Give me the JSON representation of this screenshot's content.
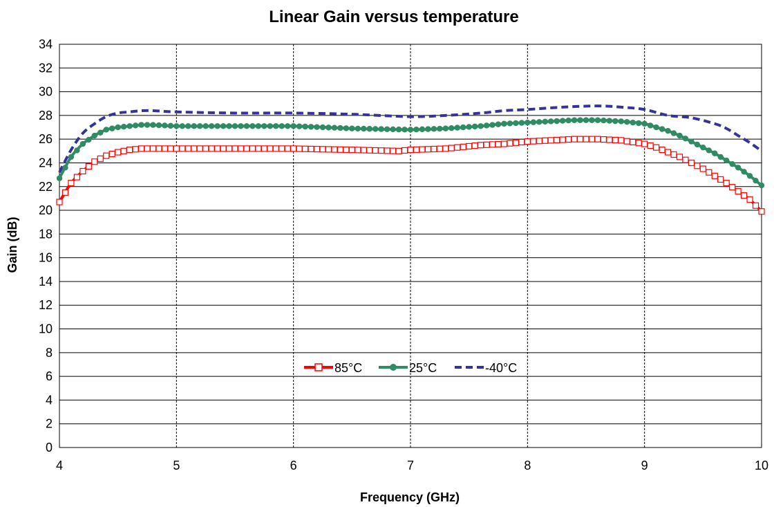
{
  "chart_data": {
    "type": "line",
    "title": "Linear Gain versus temperature",
    "xlabel": "Frequency (GHz)",
    "ylabel": "Gain (dB)",
    "xlim": [
      4,
      10
    ],
    "ylim": [
      0,
      34
    ],
    "xticks": [
      4,
      5,
      6,
      7,
      8,
      9,
      10
    ],
    "yticks": [
      0,
      2,
      4,
      6,
      8,
      10,
      12,
      14,
      16,
      18,
      20,
      22,
      24,
      26,
      28,
      30,
      32,
      34
    ],
    "grid": {
      "horizontal": "solid",
      "vertical": "dashed"
    },
    "legend_position": "center-bottom inside plot",
    "series": [
      {
        "name": "85°C",
        "color": "#ff0000",
        "marker": "open-square",
        "x": [
          4.0,
          4.1,
          4.2,
          4.3,
          4.4,
          4.5,
          4.6,
          4.7,
          4.8,
          5.0,
          5.5,
          6.0,
          6.5,
          6.9,
          7.0,
          7.3,
          7.6,
          7.8,
          8.0,
          8.2,
          8.4,
          8.6,
          8.8,
          9.0,
          9.1,
          9.2,
          9.3,
          9.4,
          9.5,
          9.6,
          9.7,
          9.8,
          9.9,
          10.0
        ],
        "y": [
          20.7,
          22.3,
          23.3,
          24.1,
          24.6,
          24.9,
          25.1,
          25.2,
          25.2,
          25.2,
          25.2,
          25.2,
          25.1,
          25.0,
          25.1,
          25.2,
          25.5,
          25.6,
          25.8,
          25.9,
          26.0,
          26.0,
          25.9,
          25.6,
          25.3,
          24.9,
          24.5,
          24.0,
          23.5,
          22.9,
          22.3,
          21.6,
          20.9,
          19.9
        ]
      },
      {
        "name": "25°C",
        "color": "#2e8b62",
        "marker": "filled-circle",
        "x": [
          4.0,
          4.1,
          4.2,
          4.3,
          4.4,
          4.5,
          4.6,
          4.7,
          4.8,
          5.0,
          5.5,
          6.0,
          6.5,
          7.0,
          7.3,
          7.6,
          7.8,
          8.0,
          8.2,
          8.4,
          8.6,
          8.8,
          9.0,
          9.1,
          9.2,
          9.3,
          9.4,
          9.5,
          9.6,
          9.7,
          9.8,
          9.9,
          10.0
        ],
        "y": [
          22.7,
          24.5,
          25.6,
          26.3,
          26.8,
          27.0,
          27.1,
          27.2,
          27.2,
          27.1,
          27.1,
          27.1,
          26.9,
          26.8,
          26.9,
          27.1,
          27.3,
          27.4,
          27.5,
          27.6,
          27.6,
          27.5,
          27.3,
          27.0,
          26.7,
          26.3,
          25.8,
          25.3,
          24.8,
          24.2,
          23.6,
          22.9,
          22.1
        ]
      },
      {
        "name": "-40°C",
        "color": "#333399",
        "marker": "none",
        "x": [
          4.0,
          4.1,
          4.2,
          4.3,
          4.4,
          4.5,
          4.6,
          4.7,
          4.8,
          5.0,
          5.5,
          6.0,
          6.5,
          7.0,
          7.3,
          7.6,
          7.8,
          8.0,
          8.3,
          8.6,
          8.8,
          9.0,
          9.2,
          9.4,
          9.6,
          9.7,
          9.8,
          9.9,
          10.0
        ],
        "y": [
          23.2,
          25.1,
          26.5,
          27.3,
          27.9,
          28.2,
          28.3,
          28.4,
          28.4,
          28.3,
          28.2,
          28.2,
          28.1,
          27.9,
          28.0,
          28.2,
          28.4,
          28.5,
          28.7,
          28.8,
          28.7,
          28.5,
          28.0,
          27.8,
          27.3,
          26.9,
          26.3,
          25.7,
          25.0
        ]
      }
    ]
  }
}
